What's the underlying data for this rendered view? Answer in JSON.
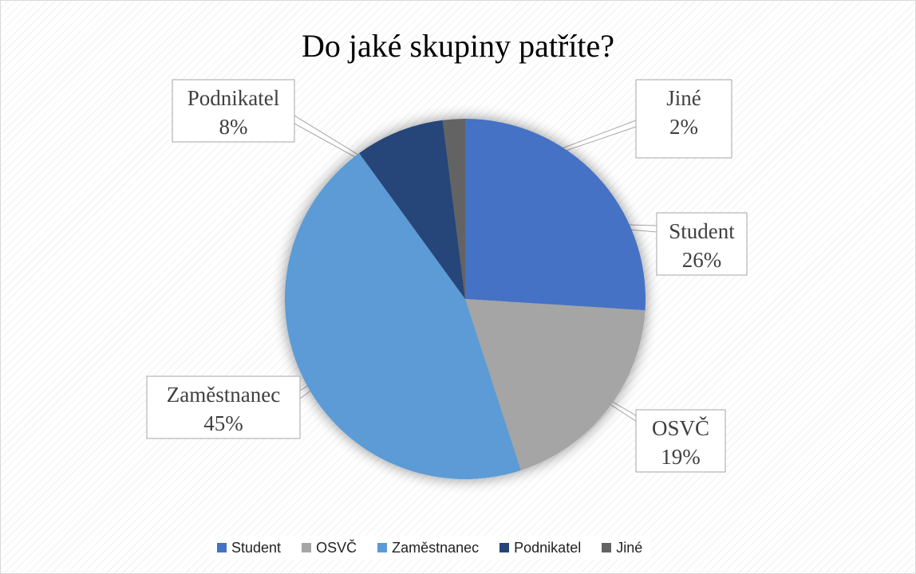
{
  "chart_data": {
    "type": "pie",
    "title": "Do jaké skupiny patříte?",
    "categories": [
      "Student",
      "OSVČ",
      "Zaměstnanec",
      "Podnikatel",
      "Jiné"
    ],
    "values": [
      26,
      19,
      45,
      8,
      2
    ],
    "value_labels": [
      "26%",
      "19%",
      "45%",
      "8%",
      "2%"
    ],
    "colors": [
      "#4472C4",
      "#A5A5A5",
      "#5B9BD5",
      "#264478",
      "#636363"
    ],
    "legend_position": "bottom",
    "start_angle_deg": 0,
    "direction": "clockwise"
  },
  "legend": {
    "items": [
      {
        "label": "Student",
        "color": "#4472C4"
      },
      {
        "label": "OSVČ",
        "color": "#A5A5A5"
      },
      {
        "label": "Zaměstnanec",
        "color": "#5B9BD5"
      },
      {
        "label": "Podnikatel",
        "color": "#264478"
      },
      {
        "label": "Jiné",
        "color": "#636363"
      }
    ]
  }
}
